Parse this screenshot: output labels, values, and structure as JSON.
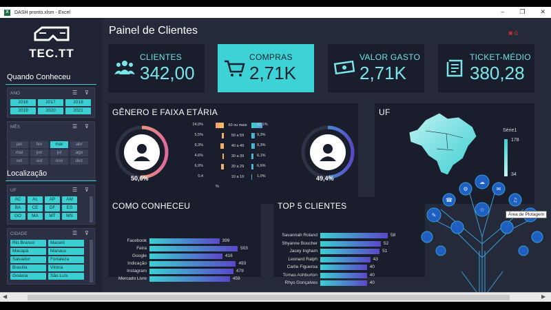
{
  "window": {
    "title": "DASH pronto.xlsm - Excel"
  },
  "logo": {
    "brand": "TEC.TT"
  },
  "page_title": "Painel de Clientes",
  "sidebar": {
    "when_title": "Quando Conheceu",
    "ano": {
      "header": "ANO",
      "items": [
        "2016",
        "2017",
        "2018",
        "2019",
        "2020",
        "2021"
      ]
    },
    "mes": {
      "header": "MÊS",
      "items": [
        "jan",
        "fev",
        "mar",
        "abr",
        "mai",
        "jun",
        "jul",
        "ago",
        "set",
        "out",
        "nov",
        "dez"
      ],
      "selected": "mar"
    },
    "loc_title": "Localização",
    "uf": {
      "header": "UF",
      "items": [
        "AC",
        "AL",
        "AP",
        "AM",
        "BA",
        "CE",
        "DF",
        "ES",
        "GO",
        "MA",
        "MT",
        "MS"
      ]
    },
    "cidade": {
      "header": "CIDADE",
      "items": [
        "Rio Branco",
        "Maceió",
        "Macapá",
        "Manaus",
        "Salvador",
        "Fortaleza",
        "Brasília",
        "Vitória",
        "Goiânia",
        "São Luís"
      ]
    }
  },
  "kpis": [
    {
      "label": "CLIENTES",
      "value": "342,00",
      "icon": "people-icon"
    },
    {
      "label": "COMPRAS",
      "value": "2,71K",
      "icon": "cart-icon"
    },
    {
      "label": "VALOR GASTO",
      "value": "2,71K",
      "icon": "money-icon"
    },
    {
      "label": "TICKET-MÉDIO",
      "value": "380,28",
      "icon": "receipt-icon"
    }
  ],
  "genero": {
    "title": "GÊNERO E FAIXA ETÁRIA",
    "female_pct": "50,6%",
    "male_pct": "49,4%",
    "female_value": 50.6,
    "male_value": 49.4,
    "age_groups": [
      "60 ou mais",
      "50 a 59",
      "40 a 49",
      "30 a 39",
      "20 a 29",
      "10 a 19"
    ],
    "female_ages": [
      "24,0%",
      "5,5%",
      "9,3%",
      "4,6%",
      "6,9%",
      "0,4"
    ],
    "male_ages": [
      "31,1%",
      "9,3%",
      "9,3%",
      "6,1%",
      "6,6%",
      "1,0%"
    ],
    "female_age_values": [
      24.0,
      5.5,
      9.3,
      4.6,
      6.9,
      0.4
    ],
    "male_age_values": [
      31.1,
      9.3,
      9.3,
      6.1,
      6.6,
      1.0
    ],
    "pct_symbol": "%"
  },
  "uf_map": {
    "title": "UF",
    "legend_title": "Série1",
    "legend_max": "178",
    "legend_min": "34"
  },
  "como_conheceu": {
    "title": "COMO CONHECEU",
    "labels": [
      "Facebook",
      "Feira",
      "Google",
      "Indicação",
      "Instagram",
      "Mercado Livre"
    ],
    "values": [
      399,
      503,
      416,
      493,
      479,
      459
    ],
    "value_labels": [
      "399",
      "503",
      "416",
      "493",
      "479",
      "459"
    ]
  },
  "top5": {
    "title": "TOP 5 CLIENTES",
    "labels": [
      "Savannah Roland",
      "Shyanne Boucher",
      "Jacey Ingham",
      "Leonard Ralph",
      "Carlie Figueroa",
      "Tomas Ashburton",
      "Rhys Gonçalves"
    ],
    "values": [
      58,
      52,
      51,
      43,
      40,
      40,
      40
    ],
    "value_labels": [
      "58",
      "52",
      "51",
      "43",
      "40",
      "40",
      "40"
    ]
  },
  "tooltip": "Área de Plotagem",
  "colors": {
    "accent": "#3dd3d6",
    "bg": "#252a3b",
    "panel": "#1a1e2c",
    "female": "#f0a070",
    "male": "#3ccfd2"
  }
}
